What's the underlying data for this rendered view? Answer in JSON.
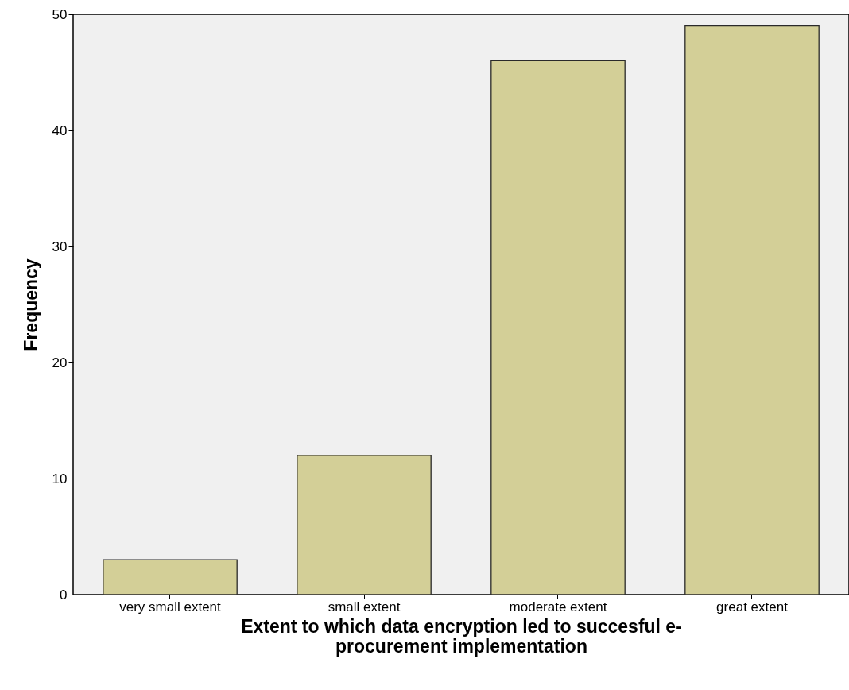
{
  "chart_data": {
    "type": "bar",
    "xlabel": "Extent to which data encryption led to succesful e-procurement implementation",
    "ylabel": "Frequency",
    "categories": [
      "very small extent",
      "small extent",
      "moderate extent",
      "great extent"
    ],
    "values": [
      3,
      12,
      46,
      49
    ],
    "color": "#d3cf97",
    "ylim": [
      0,
      50
    ],
    "yticks": [
      0,
      10,
      20,
      30,
      40,
      50
    ],
    "grid": false
  }
}
